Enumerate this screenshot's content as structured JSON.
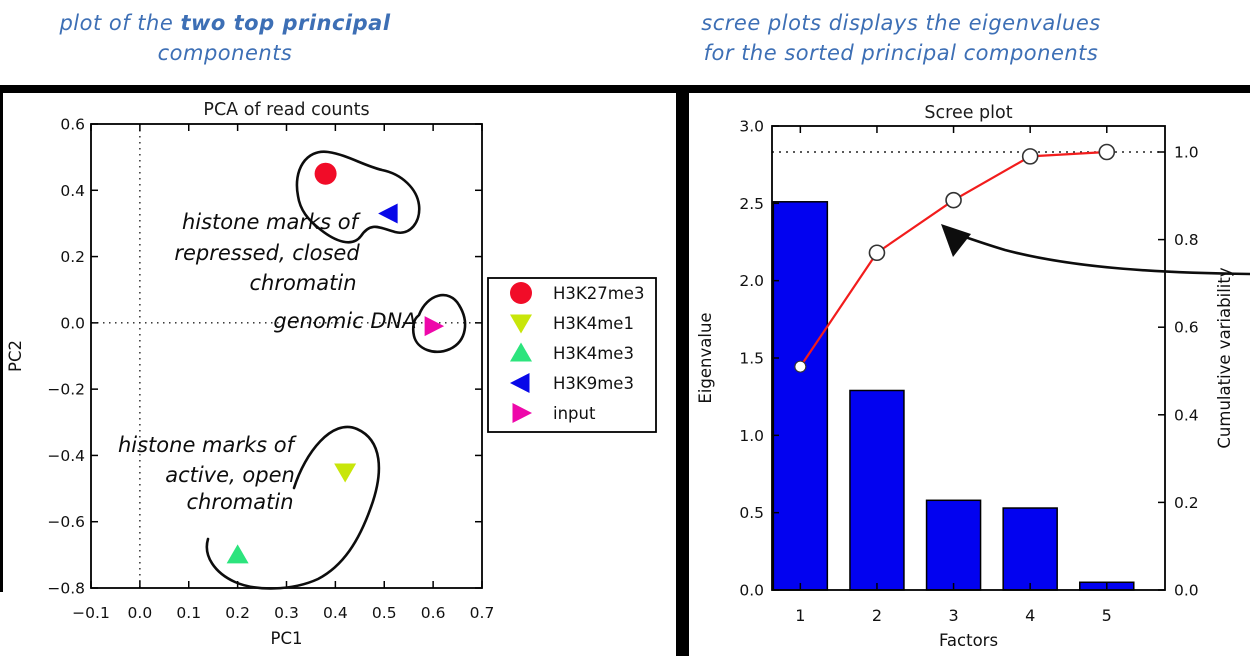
{
  "notes": {
    "color": "#3d6fb5",
    "left": {
      "line1_prefix": "plot of the ",
      "line1_bold": "two top principal",
      "line2": "components"
    },
    "right": {
      "line1": "scree plots displays the eigenvalues",
      "line2": "for the sorted principal components"
    }
  },
  "chart_data": [
    {
      "type": "scatter",
      "title": "PCA of read counts",
      "xlabel": "PC1",
      "ylabel": "PC2",
      "xlim": [
        -0.1,
        0.7
      ],
      "ylim": [
        -0.8,
        0.6
      ],
      "grid": "dotted lines at x=0 and y=0",
      "legend_position": "outside right, middle",
      "xticks": [
        {
          "v": -0.1,
          "label": "−0.1"
        },
        {
          "v": 0.0,
          "label": "0.0"
        },
        {
          "v": 0.1,
          "label": "0.1"
        },
        {
          "v": 0.2,
          "label": "0.2"
        },
        {
          "v": 0.3,
          "label": "0.3"
        },
        {
          "v": 0.4,
          "label": "0.4"
        },
        {
          "v": 0.5,
          "label": "0.5"
        },
        {
          "v": 0.6,
          "label": "0.6"
        },
        {
          "v": 0.7,
          "label": "0.7"
        }
      ],
      "yticks": [
        {
          "v": 0.6,
          "label": "0.6"
        },
        {
          "v": 0.4,
          "label": "0.4"
        },
        {
          "v": 0.2,
          "label": "0.2"
        },
        {
          "v": 0.0,
          "label": "0.0"
        },
        {
          "v": -0.2,
          "label": "−0.2"
        },
        {
          "v": -0.4,
          "label": "−0.4"
        },
        {
          "v": -0.6,
          "label": "−0.6"
        },
        {
          "v": -0.8,
          "label": "−0.8"
        }
      ],
      "series": [
        {
          "name": "H3K27me3",
          "marker": "circle",
          "color": "#f10c28",
          "x": 0.38,
          "y": 0.45
        },
        {
          "name": "H3K4me1",
          "marker": "triangle-down",
          "color": "#c8e60a",
          "x": 0.42,
          "y": -0.45
        },
        {
          "name": "H3K4me3",
          "marker": "triangle-up",
          "color": "#2ce47d",
          "x": 0.2,
          "y": -0.7
        },
        {
          "name": "H3K9me3",
          "marker": "triangle-left",
          "color": "#0808e8",
          "x": 0.51,
          "y": 0.33
        },
        {
          "name": "input",
          "marker": "triangle-right",
          "color": "#ee08aa",
          "x": 0.6,
          "y": -0.01
        }
      ],
      "annotations": [
        {
          "lines": [
            "histone marks of",
            "repressed, closed",
            "chromatin"
          ]
        },
        {
          "lines": [
            "genomic DNA"
          ]
        },
        {
          "lines": [
            "histone marks of",
            "active, open",
            "chromatin"
          ]
        }
      ]
    },
    {
      "type": "bar+line",
      "title": "Scree plot",
      "xlabel": "Factors",
      "ylabel_left": "Eigenvalue",
      "ylabel_right": "Cumulative variability",
      "categories": [
        "1",
        "2",
        "3",
        "4",
        "5"
      ],
      "eigenvalues": [
        2.51,
        1.29,
        0.58,
        0.53,
        0.05
      ],
      "cumulative": [
        0.51,
        0.77,
        0.89,
        0.99,
        1.0
      ],
      "ylim_left": [
        0.0,
        3.0
      ],
      "ylim_right": [
        0.0,
        1.06
      ],
      "yticks_left": [
        {
          "v": 0.0,
          "label": "0.0"
        },
        {
          "v": 0.5,
          "label": "0.5"
        },
        {
          "v": 1.0,
          "label": "1.0"
        },
        {
          "v": 1.5,
          "label": "1.5"
        },
        {
          "v": 2.0,
          "label": "2.0"
        },
        {
          "v": 2.5,
          "label": "2.5"
        },
        {
          "v": 3.0,
          "label": "3.0"
        }
      ],
      "yticks_right": [
        {
          "v": 0.0,
          "label": "0.0"
        },
        {
          "v": 0.2,
          "label": "0.2"
        },
        {
          "v": 0.4,
          "label": "0.4"
        },
        {
          "v": 0.6,
          "label": "0.6"
        },
        {
          "v": 0.8,
          "label": "0.8"
        },
        {
          "v": 1.0,
          "label": "1.0"
        }
      ],
      "dotted_reference": 1.0,
      "bar_color": "#0202f0",
      "line_color": "#f21c1c",
      "marker_face": "#ffffff"
    }
  ]
}
